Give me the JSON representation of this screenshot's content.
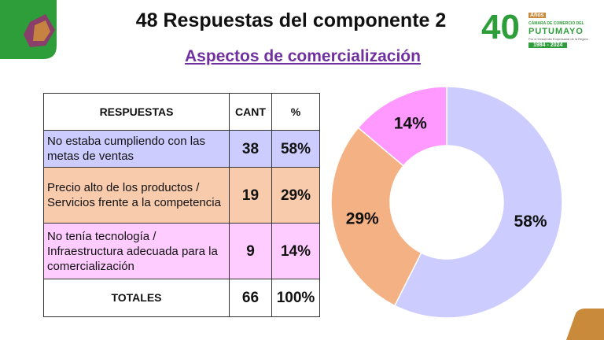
{
  "title": "48 Respuestas del componente 2",
  "subtitle": "Aspectos de comercialización",
  "logo": {
    "number": "40",
    "years": "Años",
    "line1": "CÁMARA DE COMERCIO DEL",
    "line2": "PUTUMAYO",
    "line3": "Por el Desarrollo Empresarial de la Región",
    "dates": "1984 - 2024"
  },
  "table": {
    "header": [
      "RESPUESTAS",
      "CANT",
      "%"
    ],
    "rows": [
      [
        "No estaba cumpliendo con las metas de ventas",
        "38",
        "58%"
      ],
      [
        "Precio alto de los productos / Servicios frente a la competencia",
        "19",
        "29%"
      ],
      [
        "No tenía tecnología / Infraestructura adecuada para la comercialización",
        "9",
        "14%"
      ]
    ],
    "totals": [
      "TOTALES",
      "66",
      "100%"
    ],
    "row_colors": [
      "#ccccff",
      "#f8cbad",
      "#ffccff"
    ]
  },
  "chart_data": {
    "type": "pie",
    "donut": true,
    "values": [
      58,
      29,
      14
    ],
    "value_labels": [
      "58%",
      "29%",
      "14%"
    ],
    "colors": [
      "#ccccff",
      "#f4b183",
      "#ff99ff"
    ]
  }
}
